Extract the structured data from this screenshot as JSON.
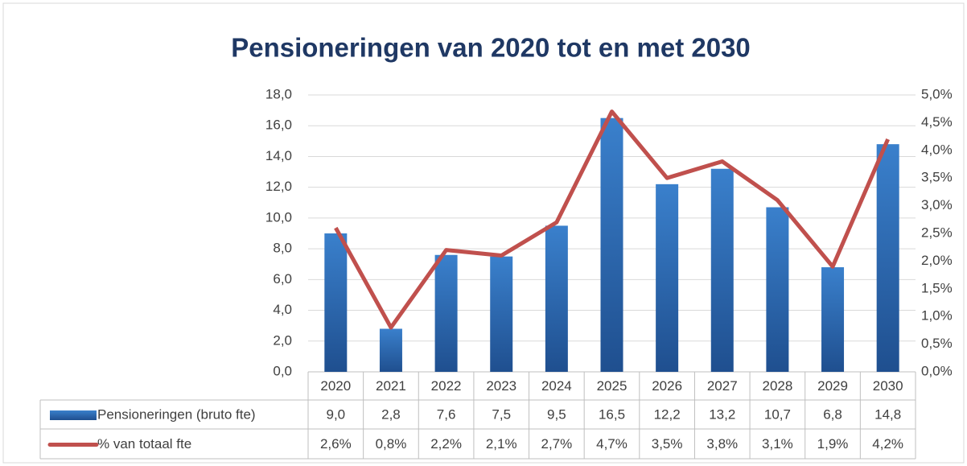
{
  "chart_data": {
    "type": "bar",
    "title": "Pensioneringen van 2020 tot en met 2030",
    "categories": [
      "2020",
      "2021",
      "2022",
      "2023",
      "2024",
      "2025",
      "2026",
      "2027",
      "2028",
      "2029",
      "2030"
    ],
    "series": [
      {
        "name": "Pensioneringen (bruto fte)",
        "type": "bar",
        "color": "#2e6db4",
        "values": [
          9.0,
          2.8,
          7.6,
          7.5,
          9.5,
          16.5,
          12.2,
          13.2,
          10.7,
          6.8,
          14.8
        ],
        "value_labels": [
          "9,0",
          "2,8",
          "7,6",
          "7,5",
          "9,5",
          "16,5",
          "12,2",
          "13,2",
          "10,7",
          "6,8",
          "14,8"
        ]
      },
      {
        "name": "% van totaal fte",
        "type": "line",
        "axis": "y2",
        "color": "#c0504d",
        "values": [
          2.6,
          0.8,
          2.2,
          2.1,
          2.7,
          4.7,
          3.5,
          3.8,
          3.1,
          1.9,
          4.2
        ],
        "value_labels": [
          "2,6%",
          "0,8%",
          "2,2%",
          "2,1%",
          "2,7%",
          "4,7%",
          "3,5%",
          "3,8%",
          "3,1%",
          "1,9%",
          "4,2%"
        ]
      }
    ],
    "ylim": [
      0,
      18
    ],
    "yticks": [
      {
        "value": 0,
        "label": "0,0"
      },
      {
        "value": 2,
        "label": "2,0"
      },
      {
        "value": 4,
        "label": "4,0"
      },
      {
        "value": 6,
        "label": "6,0"
      },
      {
        "value": 8,
        "label": "8,0"
      },
      {
        "value": 10,
        "label": "10,0"
      },
      {
        "value": 12,
        "label": "12,0"
      },
      {
        "value": 14,
        "label": "14,0"
      },
      {
        "value": 16,
        "label": "16,0"
      },
      {
        "value": 18,
        "label": "18,0"
      }
    ],
    "y2lim": [
      0,
      5
    ],
    "y2ticks": [
      {
        "value": 0,
        "label": "0,0%"
      },
      {
        "value": 0.5,
        "label": "0,5%"
      },
      {
        "value": 1,
        "label": "1,0%"
      },
      {
        "value": 1.5,
        "label": "1,5%"
      },
      {
        "value": 2,
        "label": "2,0%"
      },
      {
        "value": 2.5,
        "label": "2,5%"
      },
      {
        "value": 3,
        "label": "3,0%"
      },
      {
        "value": 3.5,
        "label": "3,5%"
      },
      {
        "value": 4,
        "label": "4,0%"
      },
      {
        "value": 4.5,
        "label": "4,5%"
      },
      {
        "value": 5,
        "label": "5,0%"
      }
    ],
    "grid": true
  }
}
